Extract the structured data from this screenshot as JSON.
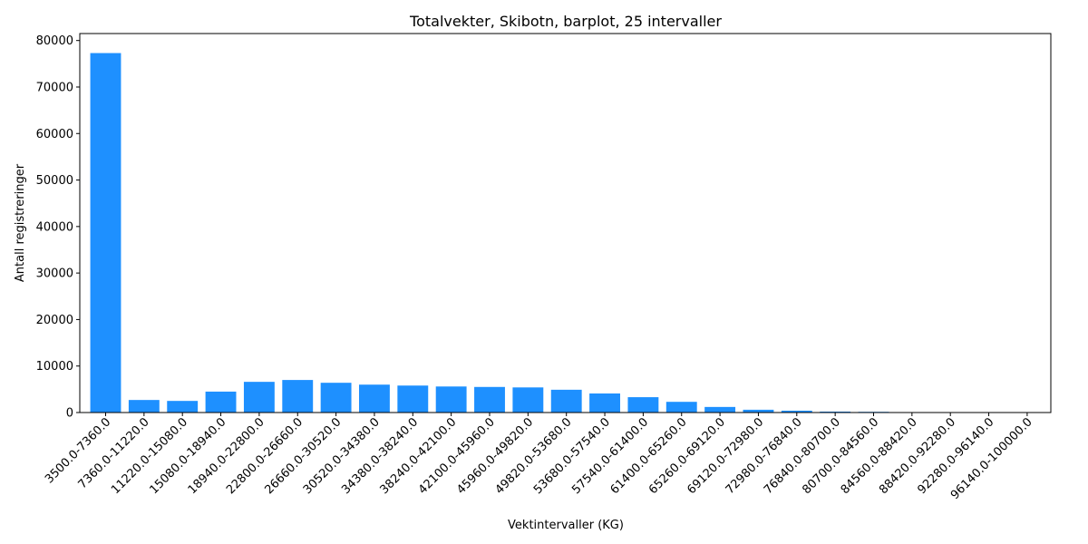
{
  "chart_data": {
    "type": "bar",
    "title": "Totalvekter, Skibotn, barplot, 25 intervaller",
    "xlabel": "Vektintervaller (KG)",
    "ylabel": "Antall registreringer",
    "ylim": [
      0,
      81500
    ],
    "yticks": [
      0,
      10000,
      20000,
      30000,
      40000,
      50000,
      60000,
      70000,
      80000
    ],
    "ytick_labels": [
      "0",
      "10000",
      "20000",
      "30000",
      "40000",
      "50000",
      "60000",
      "70000",
      "80000"
    ],
    "grid": false,
    "bar_color": "#1e90ff",
    "categories": [
      "3500.0-7360.0",
      "7360.0-11220.0",
      "11220.0-15080.0",
      "15080.0-18940.0",
      "18940.0-22800.0",
      "22800.0-26660.0",
      "26660.0-30520.0",
      "30520.0-34380.0",
      "34380.0-38240.0",
      "38240.0-42100.0",
      "42100.0-45960.0",
      "45960.0-49820.0",
      "49820.0-53680.0",
      "53680.0-57540.0",
      "57540.0-61400.0",
      "61400.0-65260.0",
      "65260.0-69120.0",
      "69120.0-72980.0",
      "72980.0-76840.0",
      "76840.0-80700.0",
      "80700.0-84560.0",
      "84560.0-88420.0",
      "88420.0-92280.0",
      "92280.0-96140.0",
      "96140.0-100000.0"
    ],
    "values": [
      77300,
      2700,
      2500,
      4500,
      6600,
      7000,
      6400,
      6000,
      5800,
      5600,
      5500,
      5400,
      4900,
      4100,
      3300,
      2300,
      1200,
      600,
      400,
      200,
      150,
      50,
      30,
      20,
      10
    ]
  }
}
